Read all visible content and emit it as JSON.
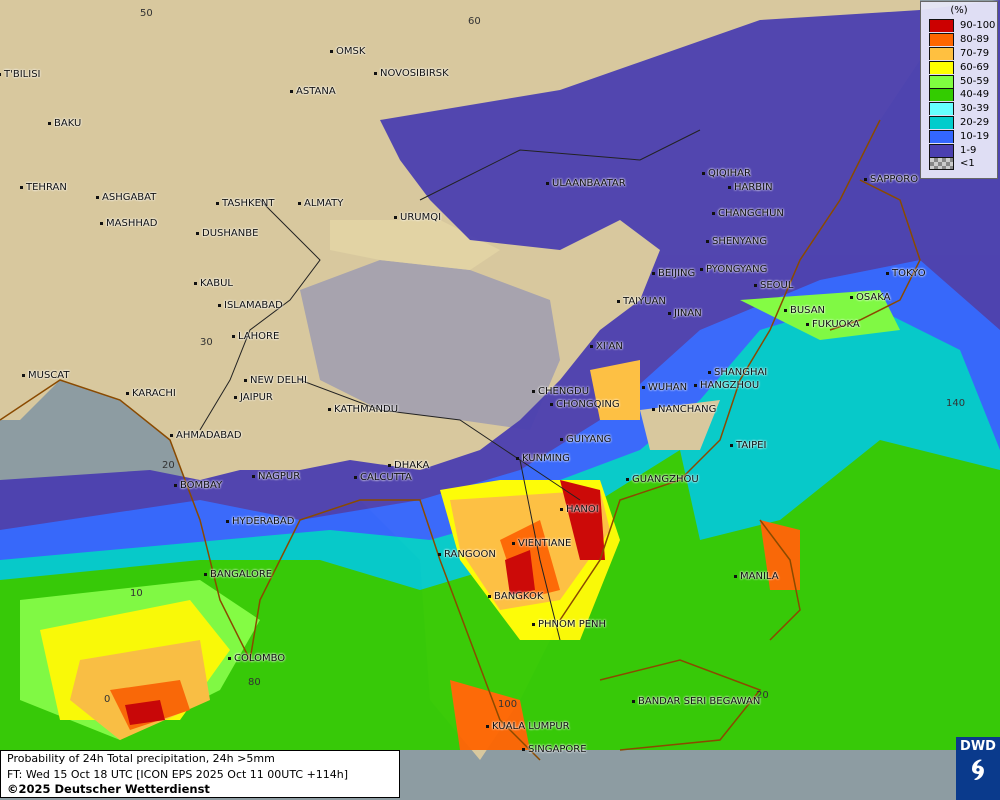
{
  "map": {
    "background_colors": {
      "ocean": "#8d9ca2",
      "land": "#d8c89e",
      "plateau": "#a7a3ae"
    },
    "grid_labels": [
      "60",
      "50",
      "30",
      "20",
      "10",
      "0",
      "80",
      "100",
      "140",
      "20"
    ],
    "cities": [
      "OMSK",
      "NOVOSIBIRSK",
      "ASTANA",
      "T'BILISI",
      "BAKU",
      "TEHRAN",
      "ASHGABAT",
      "MASHHAD",
      "TASHKENT",
      "ALMATY",
      "URUMQI",
      "DUSHANBE",
      "ULAANBAATAR",
      "QIQIHAR",
      "HARBIN",
      "CHANGCHUN",
      "SHENYANG",
      "SAPPORO",
      "BEIJING",
      "PYONGYANG",
      "SEOUL",
      "TOKYO",
      "TAIYUAN",
      "JINAN",
      "BUSAN",
      "OSAKA",
      "FUKUOKA",
      "KABUL",
      "ISLAMABAD",
      "LAHORE",
      "XI'AN",
      "SHANGHAI",
      "HANGZHOU",
      "WUHAN",
      "CHENGDU",
      "CHONGQING",
      "NANCHANG",
      "MUSCAT",
      "KARACHI",
      "NEW DELHI",
      "JAIPUR",
      "KATHMANDU",
      "AHMADABAD",
      "GUIYANG",
      "TAIPEI",
      "KUNMING",
      "DHAKA",
      "CALCUTTA",
      "NAGPUR",
      "GUANGZHOU",
      "BOMBAY",
      "HANOI",
      "HYDERABAD",
      "RANGOON",
      "VIENTIANE",
      "MANILA",
      "BANGALORE",
      "BANGKOK",
      "PHNOM PENH",
      "COLOMBO",
      "BANDAR SERI BEGAWAN",
      "KUALA LUMPUR",
      "SINGAPORE"
    ]
  },
  "legend": {
    "unit": "(%)",
    "items": [
      {
        "label": "90-100",
        "color": "#cc0000"
      },
      {
        "label": "80-89",
        "color": "#ff6600"
      },
      {
        "label": "70-79",
        "color": "#ffc040"
      },
      {
        "label": "60-69",
        "color": "#ffff00"
      },
      {
        "label": "50-59",
        "color": "#80ff40"
      },
      {
        "label": "40-49",
        "color": "#33cc00"
      },
      {
        "label": "30-39",
        "color": "#66ffff"
      },
      {
        "label": "20-29",
        "color": "#00cccc"
      },
      {
        "label": "10-19",
        "color": "#3366ff"
      },
      {
        "label": "1-9",
        "color": "#4b3fb0"
      },
      {
        "label": "<1",
        "color": "#999999"
      }
    ]
  },
  "caption": {
    "line1": "Probability of 24h Total precipitation, 24h >5mm",
    "line2": "FT: Wed 15 Oct 18 UTC [ICON EPS 2025 Oct 11 00UTC +114h]",
    "line3": "©2025 Deutscher Wetterdienst"
  },
  "logo": {
    "text": "DWD"
  }
}
